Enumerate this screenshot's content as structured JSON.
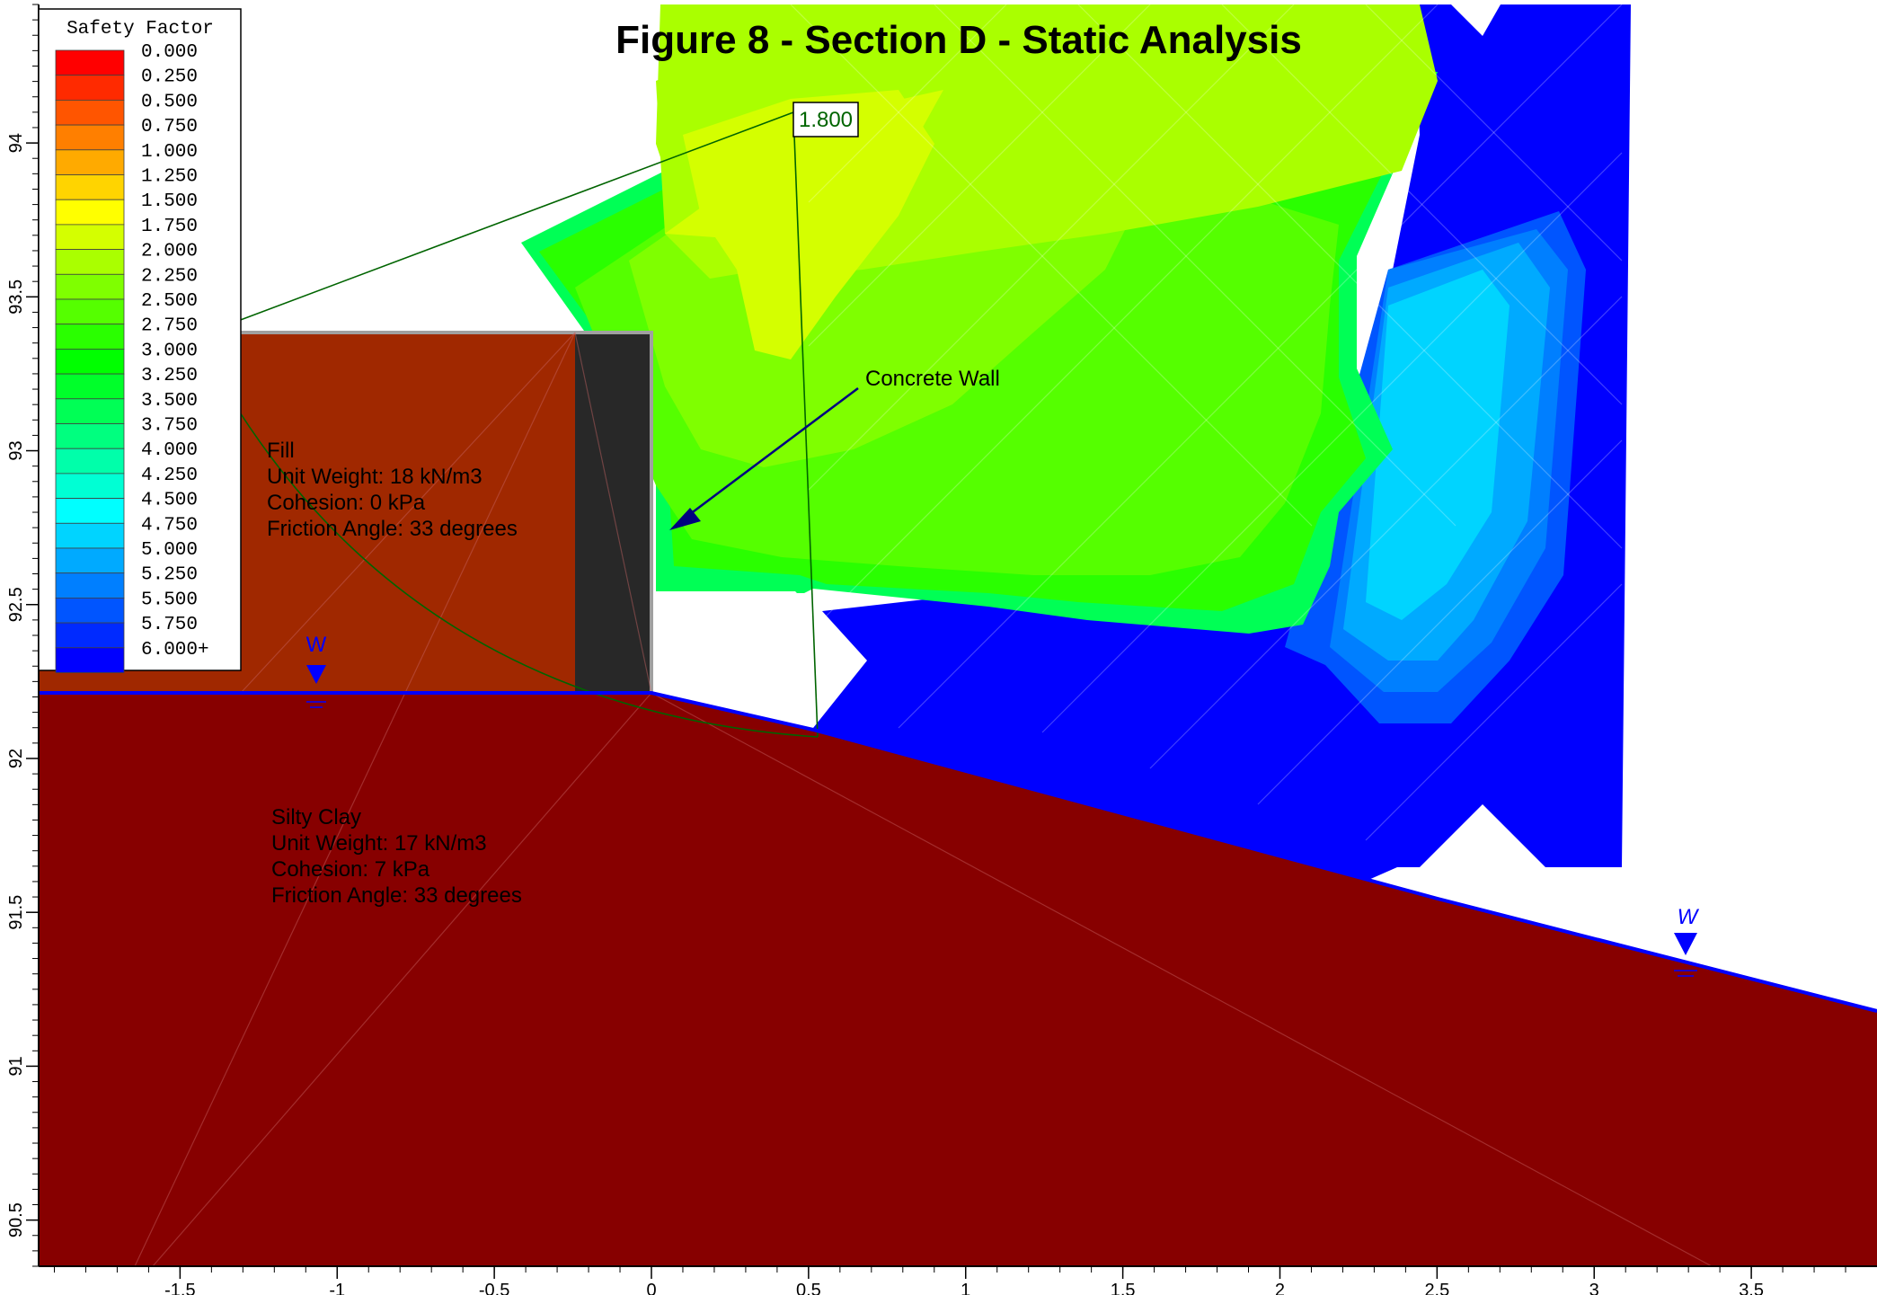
{
  "title": "Figure 8 - Section D - Static Analysis",
  "legend": {
    "title": "Safety Factor",
    "entries": [
      {
        "label": "0.000",
        "color": "#ff0000"
      },
      {
        "label": "0.250",
        "color": "#ff2a00"
      },
      {
        "label": "0.500",
        "color": "#ff5500"
      },
      {
        "label": "0.750",
        "color": "#ff7f00"
      },
      {
        "label": "1.000",
        "color": "#ffaa00"
      },
      {
        "label": "1.250",
        "color": "#ffd400"
      },
      {
        "label": "1.500",
        "color": "#ffff00"
      },
      {
        "label": "1.750",
        "color": "#d4ff00"
      },
      {
        "label": "2.000",
        "color": "#aaff00"
      },
      {
        "label": "2.250",
        "color": "#7fff00"
      },
      {
        "label": "2.500",
        "color": "#55ff00"
      },
      {
        "label": "2.750",
        "color": "#2aff00"
      },
      {
        "label": "3.000",
        "color": "#00ff00"
      },
      {
        "label": "3.250",
        "color": "#00ff2a"
      },
      {
        "label": "3.500",
        "color": "#00ff55"
      },
      {
        "label": "3.750",
        "color": "#00ff7f"
      },
      {
        "label": "4.000",
        "color": "#00ffaa"
      },
      {
        "label": "4.250",
        "color": "#00ffd4"
      },
      {
        "label": "4.500",
        "color": "#00ffff"
      },
      {
        "label": "4.750",
        "color": "#00d4ff"
      },
      {
        "label": "5.000",
        "color": "#00aaff"
      },
      {
        "label": "5.250",
        "color": "#007fff"
      },
      {
        "label": "5.500",
        "color": "#0055ff"
      },
      {
        "label": "5.750",
        "color": "#002aff"
      },
      {
        "label": "6.000+",
        "color": "#0000ff"
      }
    ]
  },
  "axes": {
    "x_ticks": [
      "-1.5",
      "-1",
      "-0.5",
      "0",
      "0.5",
      "1",
      "1.5",
      "2",
      "2.5",
      "3",
      "3.5"
    ],
    "y_ticks": [
      "94",
      "93.5",
      "93",
      "92.5",
      "92",
      "91.5",
      "91",
      "90.5"
    ],
    "x_range": [
      -1.95,
      3.9
    ],
    "y_range": [
      90.35,
      94.45
    ]
  },
  "materials": {
    "fill": {
      "name": "Fill",
      "unit_weight": "Unit Weight: 18 kN/m3",
      "cohesion": "Cohesion: 0 kPa",
      "friction": "Friction Angle: 33 degrees",
      "color": "#a02800"
    },
    "silty_clay": {
      "name": "Silty Clay",
      "unit_weight": "Unit Weight: 17 kN/m3",
      "cohesion": "Cohesion: 7 kPa",
      "friction": "Friction Angle: 33 degrees",
      "color": "#870000"
    },
    "wall": {
      "color": "#282828"
    }
  },
  "annotations": {
    "concrete_wall": "Concrete Wall",
    "min_safety_factor": "1.800",
    "water_marker": "W"
  },
  "colors": {
    "water_table": "#0000ff",
    "slip_surface": "#006400",
    "arrow": "#000080"
  }
}
